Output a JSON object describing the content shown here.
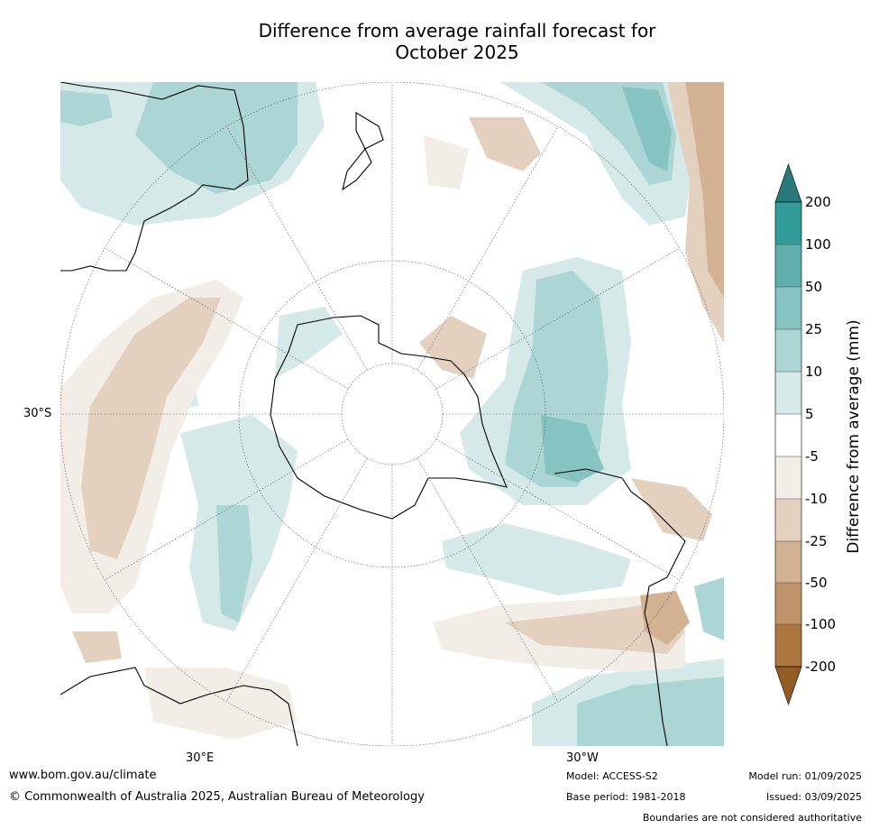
{
  "title": {
    "line1": "Difference from average rainfall forecast for",
    "line2": "October 2025"
  },
  "map": {
    "projection": "south-polar-stereographic",
    "lat_labels": [
      "30°S"
    ],
    "lon_labels": [
      "30°E",
      "30°W"
    ]
  },
  "colorbar": {
    "title": "Difference from average (mm)",
    "ticks": [
      "200",
      "100",
      "50",
      "25",
      "10",
      "5",
      "-5",
      "-10",
      "-25",
      "-50",
      "-100",
      "-200"
    ],
    "colors": {
      "gt_200": "#287a7a",
      "c_100_200": "#319c9a",
      "c_50_100": "#5fadad",
      "c_25_50": "#86c4c2",
      "c_10_25": "#acd6d5",
      "c_5_10": "#d4e9e8",
      "c_m5_5": "#ffffff",
      "c_m10_m5": "#f2ede7",
      "c_m25_m10": "#e3d0be",
      "c_m50_m25": "#d2b293",
      "c_m100_m50": "#c0946b",
      "c_m200_m100": "#ad753f",
      "lt_m200": "#925c22"
    }
  },
  "footer": {
    "url": "www.bom.gov.au/climate",
    "copyright": "© Commonwealth of Australia 2025, Australian Bureau of Meteorology",
    "model": "Model: ACCESS-S2",
    "base_period": "Base period: 1981-2018",
    "model_run": "Model run: 01/09/2025",
    "issued": "Issued: 03/09/2025",
    "boundaries": "Boundaries are not considered authoritative"
  }
}
